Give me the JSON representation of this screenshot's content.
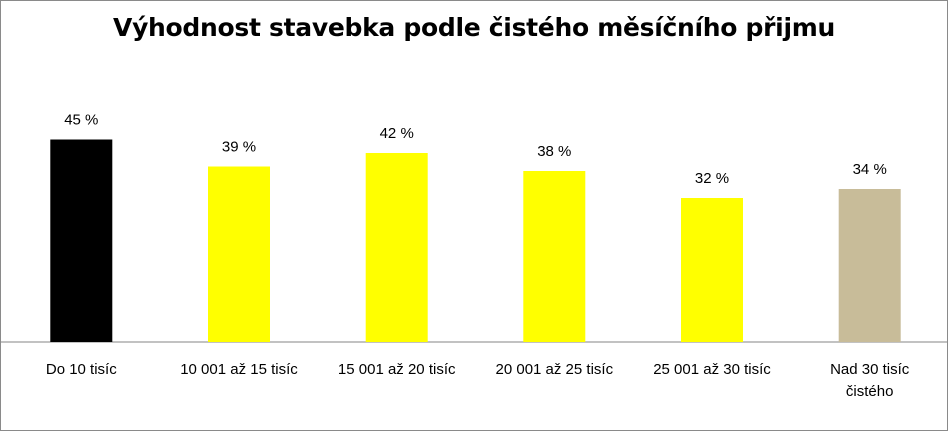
{
  "chart_data": {
    "type": "bar",
    "title": "Výhodnost stavebka podle čistého měsíčního přijmu",
    "categories": [
      [
        "Do 10 tisíc"
      ],
      [
        "10 001 až 15 tisíc"
      ],
      [
        "15 001 až 20 tisíc"
      ],
      [
        "20 001 až 25 tisíc"
      ],
      [
        "25 001 až 30 tisíc"
      ],
      [
        "Nad 30 tisíc",
        "čistého"
      ]
    ],
    "values": [
      45,
      39,
      42,
      38,
      32,
      34
    ],
    "value_labels": [
      "45 %",
      "39 %",
      "42 %",
      "38 %",
      "32 %",
      "34 %"
    ],
    "bar_colors": [
      "#000000",
      "#ffff00",
      "#ffff00",
      "#ffff00",
      "#ffff00",
      "#c8bc99"
    ],
    "ylim": [
      0,
      60
    ],
    "grid": false,
    "legend": "none",
    "xlabel": "",
    "ylabel": ""
  }
}
